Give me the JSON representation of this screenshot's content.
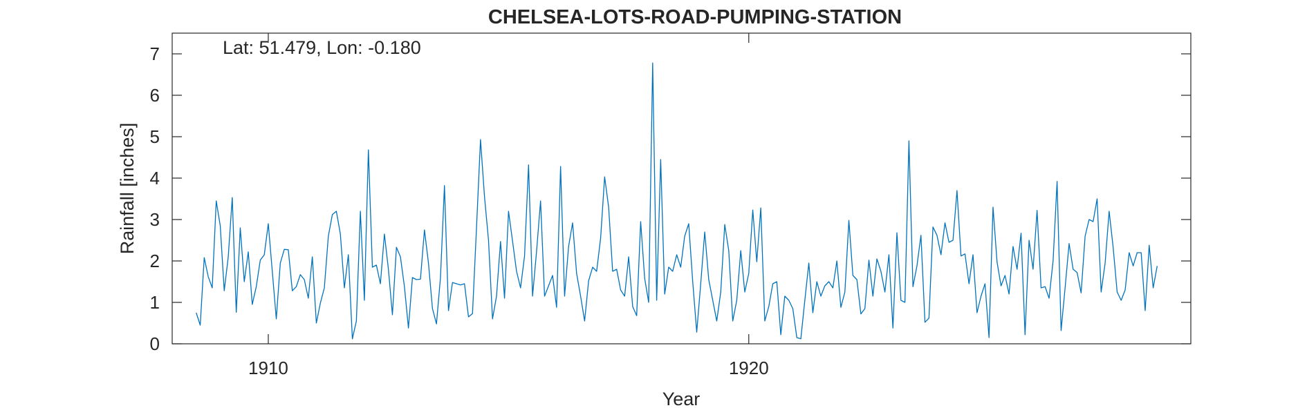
{
  "chart_data": {
    "type": "line",
    "title": "CHELSEA-LOTS-ROAD-PUMPING-STATION",
    "xlabel": "Year",
    "ylabel": "Rainfall [inches]",
    "annotation": "Lat: 51.479, Lon: -0.180",
    "xlim": [
      1908,
      1929.2
    ],
    "ylim": [
      0,
      7.5
    ],
    "x_ticks": [
      1910,
      1920
    ],
    "y_ticks": [
      0,
      1,
      2,
      3,
      4,
      5,
      6,
      7
    ],
    "grid": false,
    "line_color": "#0072BD",
    "x_start": 1908.5,
    "x_step": 0.0833333,
    "series": [
      {
        "values": [
          0.75,
          0.45,
          2.08,
          1.62,
          1.35,
          3.45,
          2.85,
          1.28,
          2.1,
          3.53,
          0.76,
          2.8,
          1.5,
          2.22,
          0.95,
          1.38,
          2.02,
          2.15,
          2.9,
          1.75,
          0.6,
          1.95,
          2.28,
          2.27,
          1.28,
          1.38,
          1.67,
          1.55,
          1.1,
          2.1,
          0.5,
          0.98,
          1.35,
          2.6,
          3.12,
          3.2,
          2.65,
          1.35,
          2.15,
          0.12,
          0.55,
          3.2,
          1.05,
          4.68,
          1.85,
          1.9,
          1.45,
          2.65,
          1.8,
          0.7,
          2.33,
          2.1,
          1.38,
          0.38,
          1.6,
          1.55,
          1.56,
          2.75,
          1.95,
          0.85,
          0.48,
          1.6,
          3.82,
          0.8,
          1.48,
          1.45,
          1.42,
          1.45,
          0.65,
          0.73,
          2.8,
          4.93,
          3.55,
          2.5,
          0.6,
          1.15,
          2.47,
          1.1,
          3.2,
          2.48,
          1.75,
          1.35,
          2.12,
          4.32,
          1.15,
          2.23,
          3.45,
          1.15,
          1.4,
          1.65,
          0.88,
          4.28,
          1.15,
          2.35,
          2.92,
          1.7,
          1.15,
          0.55,
          1.52,
          1.85,
          1.75,
          2.55,
          4.03,
          3.3,
          1.75,
          1.8,
          1.3,
          1.15,
          2.1,
          0.9,
          0.68,
          2.95,
          1.58,
          1.0,
          6.78,
          1.05,
          4.45,
          1.2,
          1.85,
          1.75,
          2.15,
          1.85,
          2.6,
          2.9,
          1.5,
          0.28,
          1.45,
          2.7,
          1.55,
          1.05,
          0.55,
          1.25,
          2.88,
          2.25,
          0.55,
          1.05,
          2.25,
          1.25,
          1.7,
          3.23,
          1.98,
          3.28,
          0.55,
          0.9,
          1.45,
          1.5,
          0.22,
          1.15,
          1.05,
          0.85,
          0.15,
          0.12,
          1.05,
          1.95,
          0.75,
          1.5,
          1.15,
          1.4,
          1.5,
          1.35,
          2.0,
          0.88,
          1.25,
          2.98,
          1.65,
          1.55,
          0.72,
          0.85,
          2.02,
          1.15,
          2.05,
          1.75,
          1.25,
          2.15,
          0.38,
          2.68,
          1.05,
          1.0,
          4.9,
          1.38,
          1.88,
          2.62,
          0.52,
          0.62,
          2.82,
          2.62,
          2.15,
          2.92,
          2.45,
          2.5,
          3.7,
          2.12,
          2.17,
          1.45,
          2.15,
          0.75,
          1.15,
          1.45,
          0.15,
          3.3,
          1.98,
          1.4,
          1.65,
          1.2,
          2.35,
          1.8,
          2.67,
          0.22,
          2.5,
          1.8,
          3.22,
          1.35,
          1.38,
          1.1,
          2.0,
          3.92,
          0.32,
          1.35,
          2.42,
          1.8,
          1.72,
          1.23,
          2.6,
          3.0,
          2.95,
          3.5,
          1.25,
          1.95,
          3.2,
          2.33,
          1.25,
          1.05,
          1.3,
          2.2,
          1.88,
          2.2,
          2.2,
          0.8,
          2.38,
          1.35,
          1.88
        ]
      }
    ]
  }
}
